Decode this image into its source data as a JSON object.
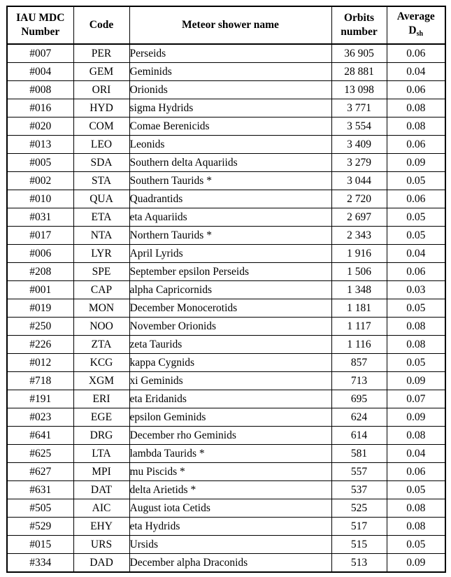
{
  "headers": {
    "number_line1": "IAU MDC",
    "number_line2": "Number",
    "code": "Code",
    "name": "Meteor shower name",
    "orbits_line1": "Orbits",
    "orbits_line2": "number",
    "dsh_line1": "Average",
    "dsh_main": "D",
    "dsh_sub": "sh"
  },
  "rows": [
    {
      "number": "#007",
      "code": "PER",
      "name": "Perseids",
      "orbits": "36 905",
      "dsh": "0.06"
    },
    {
      "number": "#004",
      "code": "GEM",
      "name": "Geminids",
      "orbits": "28 881",
      "dsh": "0.04"
    },
    {
      "number": "#008",
      "code": "ORI",
      "name": "Orionids",
      "orbits": "13 098",
      "dsh": "0.06"
    },
    {
      "number": "#016",
      "code": "HYD",
      "name": "sigma Hydrids",
      "orbits": "3 771",
      "dsh": "0.08"
    },
    {
      "number": "#020",
      "code": "COM",
      "name": "Comae Berenicids",
      "orbits": "3 554",
      "dsh": "0.08"
    },
    {
      "number": "#013",
      "code": "LEO",
      "name": "Leonids",
      "orbits": "3 409",
      "dsh": "0.06"
    },
    {
      "number": "#005",
      "code": "SDA",
      "name": "Southern delta Aquariids",
      "orbits": "3 279",
      "dsh": "0.09"
    },
    {
      "number": "#002",
      "code": "STA",
      "name": "Southern Taurids *",
      "orbits": "3 044",
      "dsh": "0.05"
    },
    {
      "number": "#010",
      "code": "QUA",
      "name": "Quadrantids",
      "orbits": "2 720",
      "dsh": "0.06"
    },
    {
      "number": "#031",
      "code": "ETA",
      "name": "eta Aquariids",
      "orbits": "2 697",
      "dsh": "0.05"
    },
    {
      "number": "#017",
      "code": "NTA",
      "name": "Northern Taurids *",
      "orbits": "2 343",
      "dsh": "0.05"
    },
    {
      "number": "#006",
      "code": "LYR",
      "name": "April Lyrids",
      "orbits": "1 916",
      "dsh": "0.04"
    },
    {
      "number": "#208",
      "code": "SPE",
      "name": "September epsilon Perseids",
      "orbits": "1 506",
      "dsh": "0.06"
    },
    {
      "number": "#001",
      "code": "CAP",
      "name": "alpha Capricornids",
      "orbits": "1 348",
      "dsh": "0.03"
    },
    {
      "number": "#019",
      "code": "MON",
      "name": "December Monocerotids",
      "orbits": "1 181",
      "dsh": "0.05"
    },
    {
      "number": "#250",
      "code": "NOO",
      "name": "November Orionids",
      "orbits": "1 117",
      "dsh": "0.08"
    },
    {
      "number": "#226",
      "code": "ZTA",
      "name": "zeta Taurids",
      "orbits": "1 116",
      "dsh": "0.08"
    },
    {
      "number": "#012",
      "code": "KCG",
      "name": "kappa Cygnids",
      "orbits": "857",
      "dsh": "0.05"
    },
    {
      "number": "#718",
      "code": "XGM",
      "name": "xi Geminids",
      "orbits": "713",
      "dsh": "0.09"
    },
    {
      "number": "#191",
      "code": "ERI",
      "name": "eta Eridanids",
      "orbits": "695",
      "dsh": "0.07"
    },
    {
      "number": "#023",
      "code": "EGE",
      "name": "epsilon Geminids",
      "orbits": "624",
      "dsh": "0.09"
    },
    {
      "number": "#641",
      "code": "DRG",
      "name": "December rho Geminids",
      "orbits": "614",
      "dsh": "0.08"
    },
    {
      "number": "#625",
      "code": "LTA",
      "name": "lambda Taurids *",
      "orbits": "581",
      "dsh": "0.04"
    },
    {
      "number": "#627",
      "code": "MPI",
      "name": "mu Piscids *",
      "orbits": "557",
      "dsh": "0.06"
    },
    {
      "number": "#631",
      "code": "DAT",
      "name": "delta Arietids *",
      "orbits": "537",
      "dsh": "0.05"
    },
    {
      "number": "#505",
      "code": "AIC",
      "name": "August iota Cetids",
      "orbits": "525",
      "dsh": "0.08"
    },
    {
      "number": "#529",
      "code": "EHY",
      "name": "eta Hydrids",
      "orbits": "517",
      "dsh": "0.08"
    },
    {
      "number": "#015",
      "code": "URS",
      "name": "Ursids",
      "orbits": "515",
      "dsh": "0.05"
    },
    {
      "number": "#334",
      "code": "DAD",
      "name": "December alpha Draconids",
      "orbits": "513",
      "dsh": "0.09"
    }
  ]
}
